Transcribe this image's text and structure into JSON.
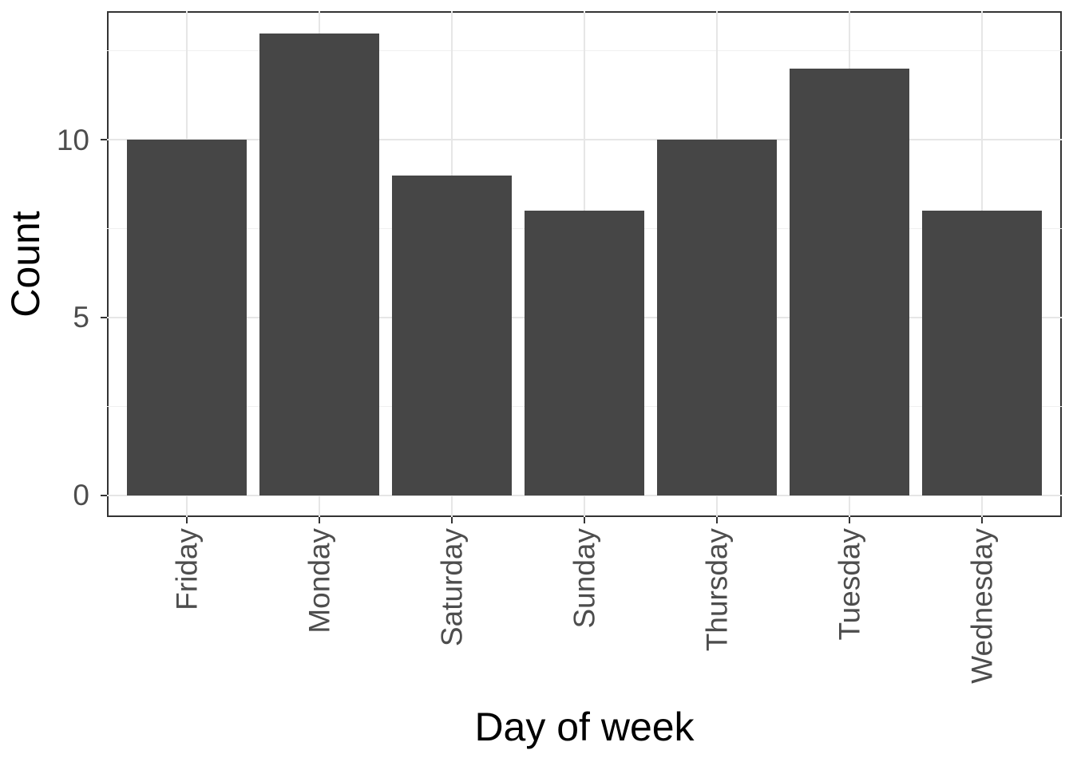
{
  "chart_data": {
    "type": "bar",
    "title": "",
    "xlabel": "Day of week",
    "ylabel": "Count",
    "categories": [
      "Friday",
      "Monday",
      "Saturday",
      "Sunday",
      "Thursday",
      "Tuesday",
      "Wednesday"
    ],
    "values": [
      10,
      13,
      9,
      8,
      10,
      12,
      8
    ],
    "y_major_ticks": [
      0,
      5,
      10
    ],
    "y_minor_gridlines": [
      2.5,
      7.5,
      12.5
    ],
    "ylim": [
      0,
      13.65
    ],
    "grid": "on",
    "legend_position": "none",
    "colors": {
      "bar_fill": "#464646",
      "panel_border": "#333333",
      "grid_major": "#e6e6e6",
      "grid_minor": "#f0f0f0",
      "axis_tick": "#333333",
      "axis_text": "#4d4d4d",
      "axis_title": "#000000",
      "background": "#ffffff"
    }
  }
}
